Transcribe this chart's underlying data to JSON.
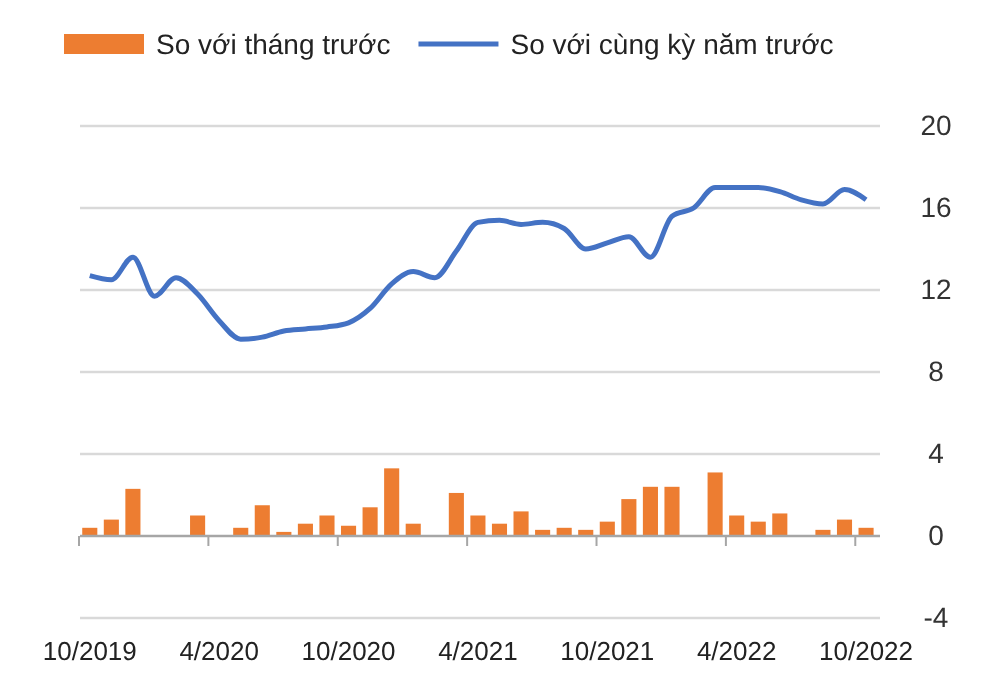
{
  "chart_data": {
    "type": "bar",
    "categories": [
      "10/2019",
      null,
      null,
      null,
      null,
      null,
      "4/2020",
      null,
      null,
      null,
      null,
      null,
      "10/2020",
      null,
      null,
      null,
      null,
      null,
      "4/2021",
      null,
      null,
      null,
      null,
      null,
      "10/2021",
      null,
      null,
      null,
      null,
      null,
      "4/2022",
      null,
      null,
      null,
      null,
      null,
      "10/2022"
    ],
    "series": [
      {
        "name": "So với tháng trước",
        "color": "#ed7d31",
        "values": [
          0.4,
          0.8,
          2.3,
          0,
          0,
          1.0,
          0,
          0.4,
          1.5,
          0.2,
          0.6,
          1.0,
          0.5,
          1.4,
          3.3,
          0.6,
          0,
          2.1,
          1.0,
          0.6,
          1.2,
          0.3,
          0.4,
          0.3,
          0.7,
          1.8,
          2.4,
          2.4,
          0,
          3.1,
          1.0,
          0.7,
          1.1,
          0,
          0.3,
          0.8,
          0.4
        ]
      },
      {
        "name": "So với cùng kỳ năm trước",
        "type": "line",
        "color": "#4472c4",
        "values": [
          12.7,
          12.5,
          13.6,
          11.7,
          12.6,
          11.8,
          10.5,
          9.6,
          9.7,
          10.0,
          10.1,
          10.2,
          10.4,
          11.1,
          12.3,
          12.9,
          12.6,
          13.9,
          15.3,
          15.4,
          15.2,
          15.3,
          15.0,
          14.0,
          14.3,
          14.6,
          13.6,
          15.6,
          16.0,
          17.0,
          17.0,
          17.0,
          16.8,
          16.4,
          16.2,
          16.9,
          16.4
        ]
      }
    ],
    "ylim": [
      -4,
      20
    ],
    "yticks": [
      -4,
      0,
      4,
      8,
      12,
      16,
      20
    ],
    "grid": "y",
    "legend": "top",
    "marker": "none",
    "line_style": "solid"
  }
}
